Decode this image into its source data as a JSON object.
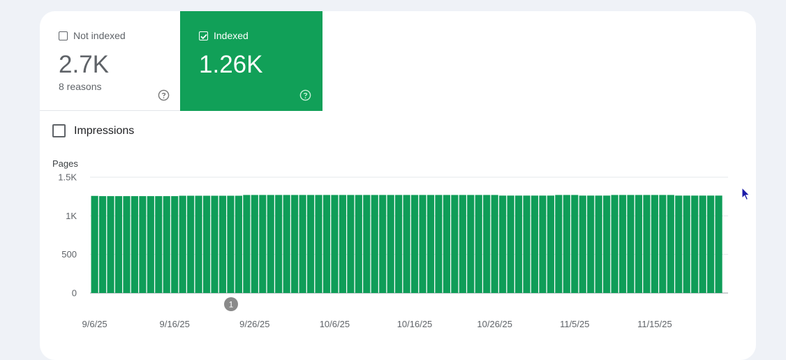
{
  "tiles": {
    "not_indexed": {
      "label": "Not indexed",
      "value": "2.7K",
      "sub": "8 reasons",
      "checked": false
    },
    "indexed": {
      "label": "Indexed",
      "value": "1.26K",
      "checked": true
    }
  },
  "impressions": {
    "label": "Impressions",
    "checked": false
  },
  "annotation": {
    "label": "1"
  },
  "colors": {
    "indexed_green": "#11a058",
    "bar_green": "#0f9d58",
    "text_grey": "#5f6368"
  },
  "icons": {
    "help": "help-circle-icon",
    "check": "checkbox-checked-icon",
    "cursor": "mouse-pointer-icon"
  },
  "chart_data": {
    "type": "bar",
    "ylabel": "Pages",
    "ylim": [
      0,
      1500
    ],
    "yticks": [
      "0",
      "500",
      "1K",
      "1.5K"
    ],
    "ytick_values": [
      0,
      500,
      1000,
      1500
    ],
    "x_tick_labels": [
      "9/6/25",
      "9/16/25",
      "9/26/25",
      "10/6/25",
      "10/16/25",
      "10/26/25",
      "11/5/25",
      "11/15/25"
    ],
    "grid": true,
    "series": [
      {
        "values": [
          1258,
          1255,
          1255,
          1255,
          1255,
          1255,
          1255,
          1255,
          1255,
          1255,
          1255,
          1260,
          1260,
          1260,
          1260,
          1260,
          1260,
          1260,
          1260,
          1270,
          1270,
          1270,
          1270,
          1270,
          1270,
          1270,
          1270,
          1270,
          1270,
          1270,
          1270,
          1270,
          1270,
          1270,
          1270,
          1270,
          1270,
          1270,
          1270,
          1270,
          1270,
          1270,
          1270,
          1270,
          1270,
          1270,
          1270,
          1270,
          1270,
          1270,
          1270,
          1262,
          1262,
          1262,
          1262,
          1262,
          1262,
          1262,
          1270,
          1270,
          1270,
          1262,
          1262,
          1262,
          1262,
          1270,
          1270,
          1270,
          1270,
          1270,
          1270,
          1270,
          1270,
          1262,
          1262,
          1262,
          1262,
          1262,
          1262
        ]
      }
    ]
  }
}
